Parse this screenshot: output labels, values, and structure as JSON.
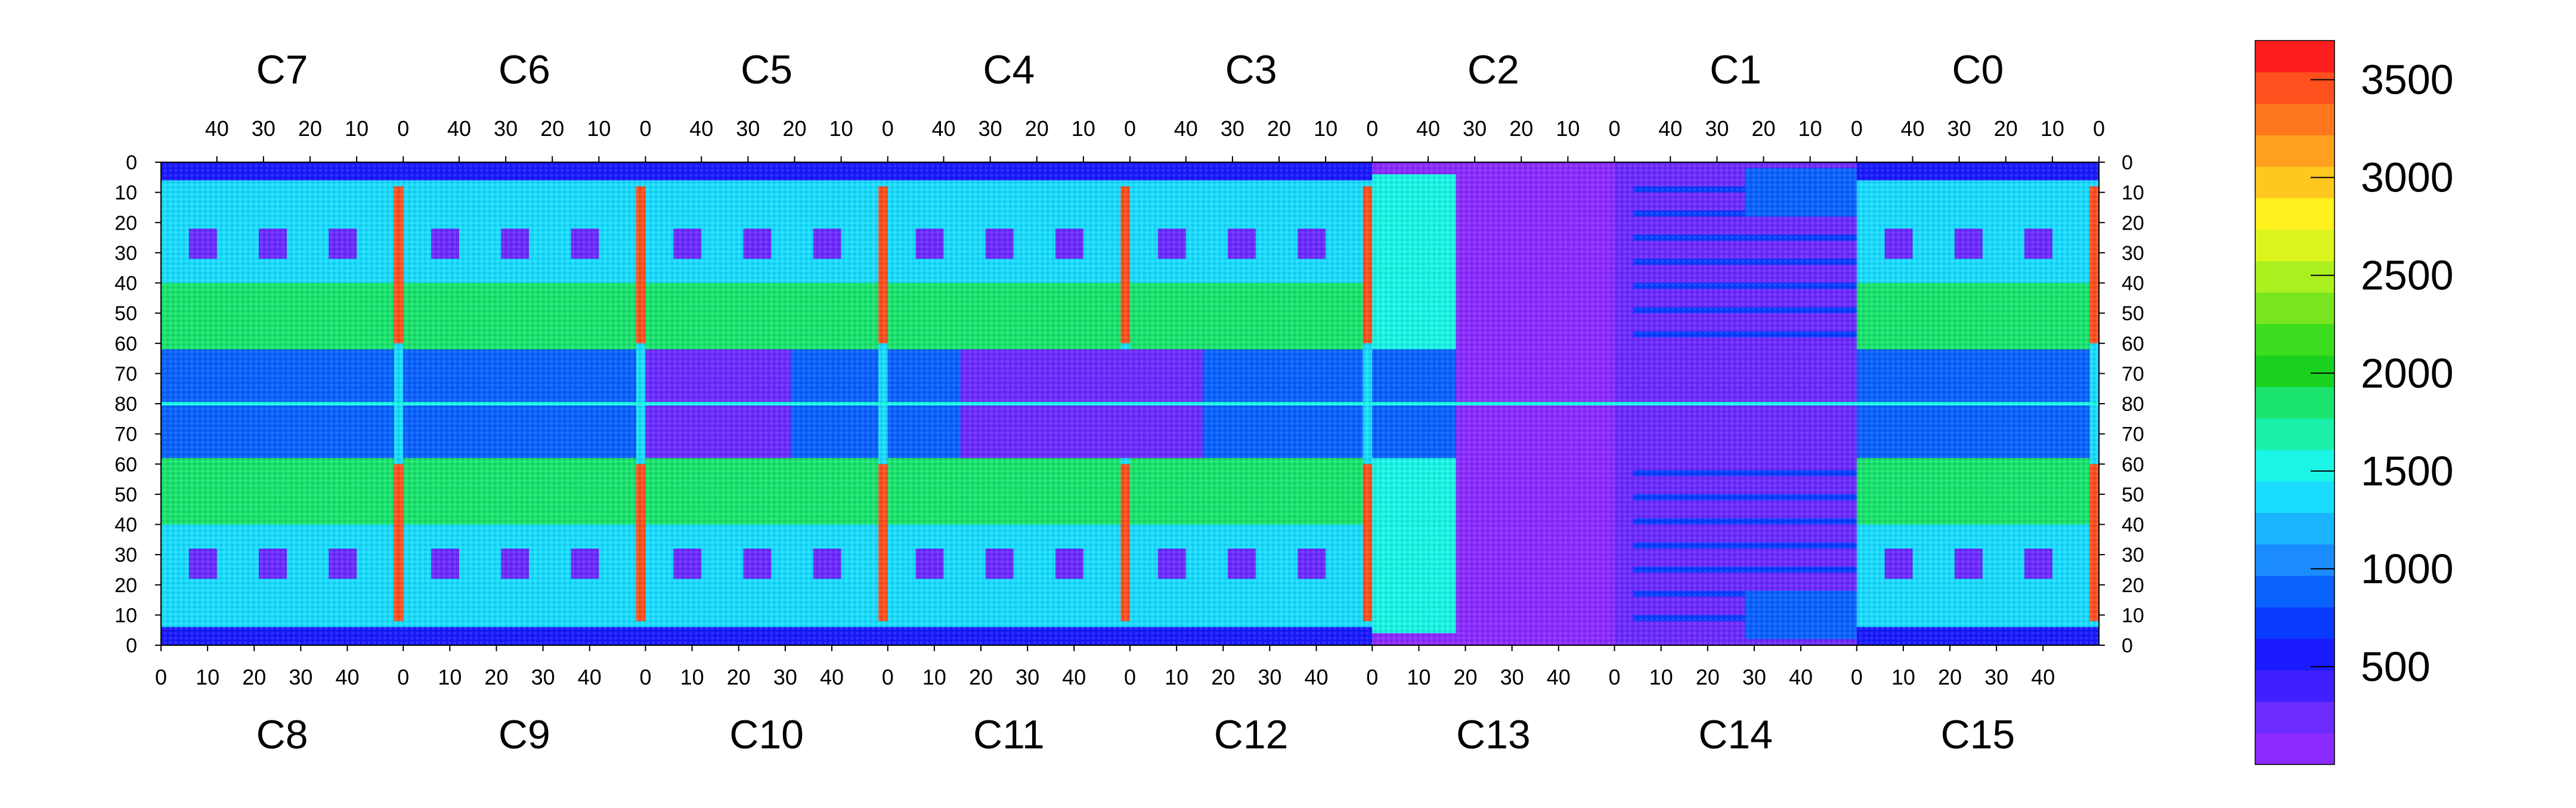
{
  "chart_data": {
    "type": "heatmap",
    "title": "",
    "xlabel": "",
    "ylabel": "",
    "top_chips": [
      "C7",
      "C6",
      "C5",
      "C4",
      "C3",
      "C2",
      "C1",
      "C0"
    ],
    "bottom_chips": [
      "C8",
      "C9",
      "C10",
      "C11",
      "C12",
      "C13",
      "C14",
      "C15"
    ],
    "top_ticks": [
      "40",
      "30",
      "20",
      "10",
      "0"
    ],
    "bottom_ticks": [
      "0",
      "10",
      "20",
      "30",
      "40"
    ],
    "y_ticks": [
      "0",
      "10",
      "20",
      "30",
      "40",
      "50",
      "60",
      "70",
      "80",
      "70",
      "60",
      "50",
      "40",
      "30",
      "20",
      "10",
      "0"
    ],
    "columns_per_chip": 52,
    "rows_per_half": 80,
    "zlim": [
      0,
      3700
    ],
    "colorbar": {
      "ticks": [
        500,
        1000,
        1500,
        2000,
        2500,
        3000,
        3500
      ],
      "tick_labels": [
        "500",
        "1000",
        "1500",
        "2000",
        "2500",
        "3000",
        "3500"
      ],
      "colors": [
        "#8B2BFF",
        "#6C2BFF",
        "#3F1FFF",
        "#1A1AFF",
        "#0A3CFF",
        "#0A62FF",
        "#1A8CFF",
        "#1AB4FF",
        "#1ADCFF",
        "#1AF5E6",
        "#1AF0AA",
        "#1AE46E",
        "#1AD21E",
        "#3CDC1E",
        "#78E61E",
        "#AAF01E",
        "#DCF51E",
        "#FFF01E",
        "#FFC81E",
        "#FFA01E",
        "#FF781E",
        "#FF501E",
        "#FF1E1E"
      ]
    }
  }
}
